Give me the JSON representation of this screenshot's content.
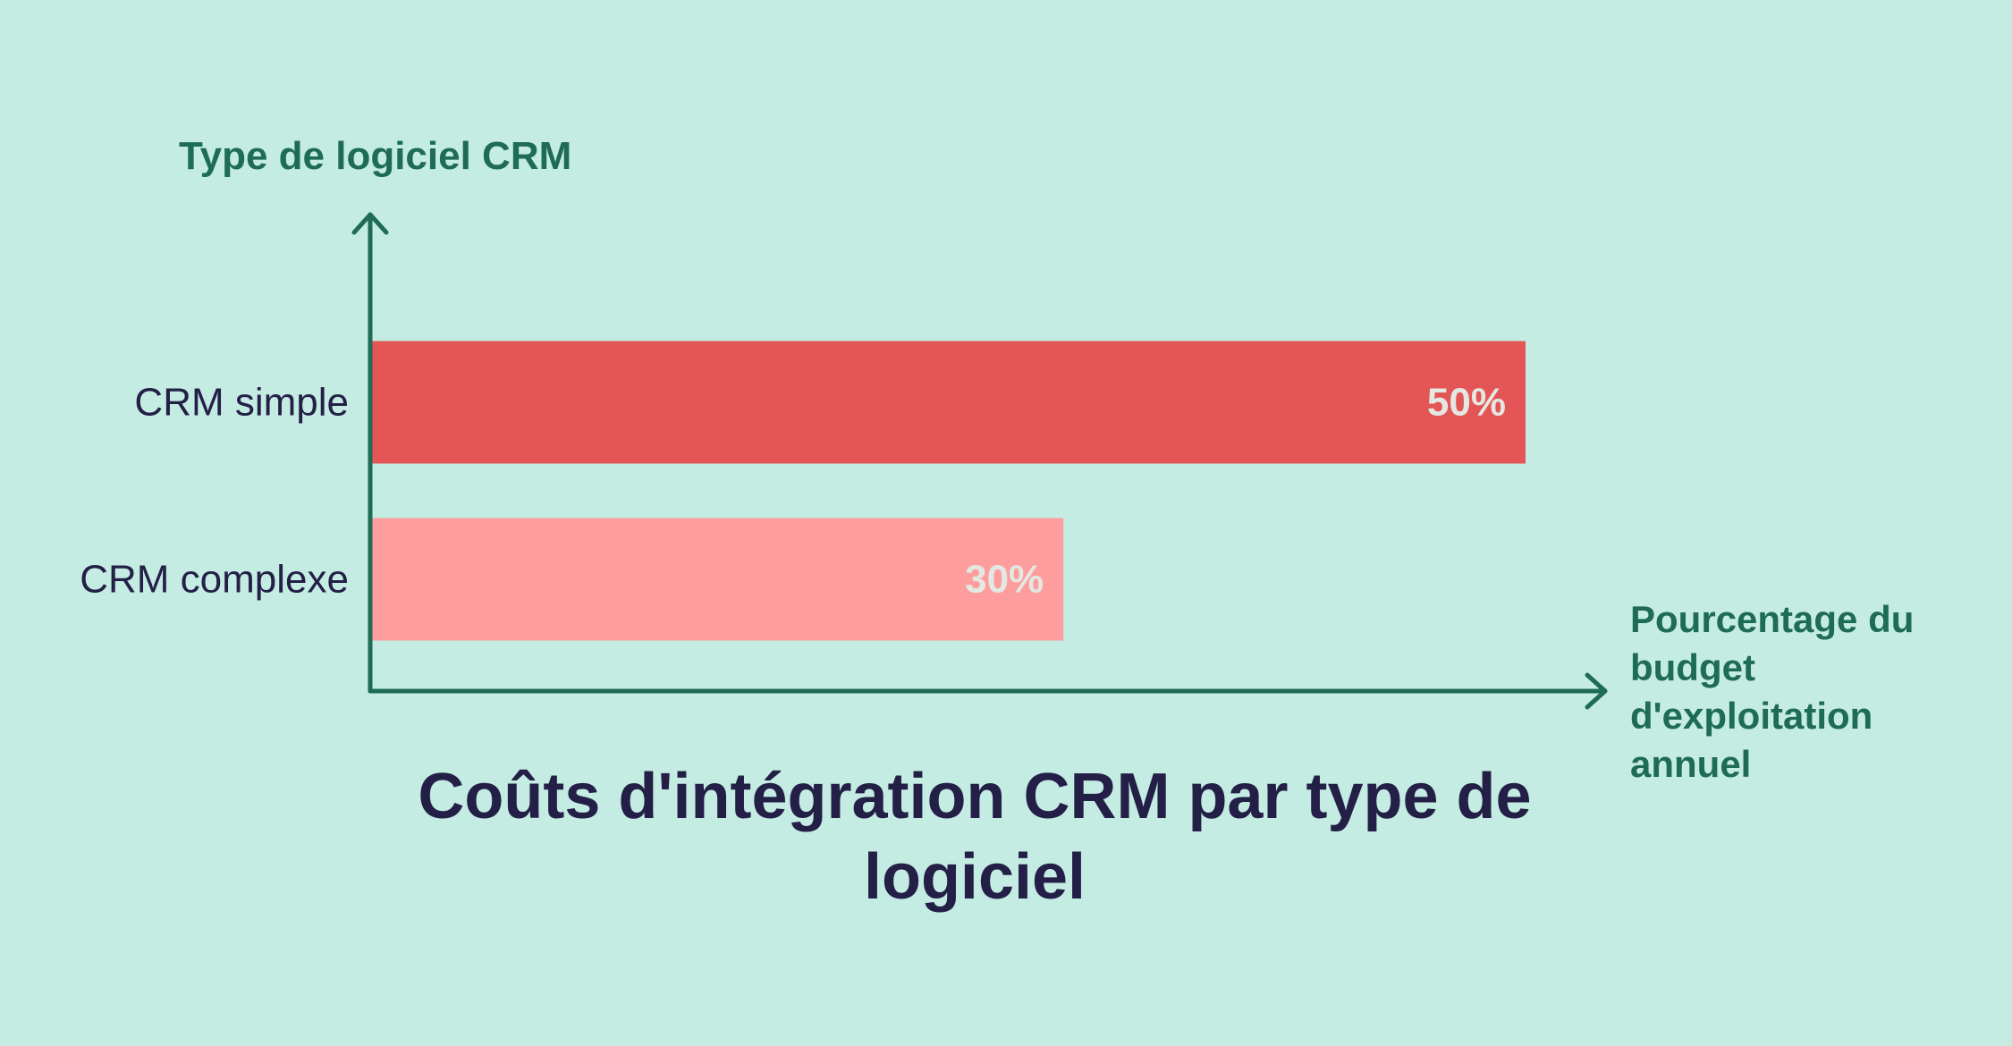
{
  "colors": {
    "background": "#c4ece2",
    "axis": "#1e6b56",
    "category_label": "#231f47",
    "value_label": "#e3e8e2"
  },
  "chart_data": {
    "type": "bar",
    "orientation": "horizontal",
    "title": "Coûts d'intégration CRM par type de logiciel",
    "ylabel": "Type de logiciel CRM",
    "xlabel": "Pourcentage du budget d'exploitation annuel",
    "categories": [
      "CRM simple",
      "CRM complexe"
    ],
    "values": [
      50,
      30
    ],
    "value_labels": [
      "50%",
      "30%"
    ],
    "bar_colors": [
      "#e45556",
      "#fe9d9d"
    ],
    "xlim": [
      0,
      55
    ],
    "grid": false,
    "legend": "none"
  }
}
